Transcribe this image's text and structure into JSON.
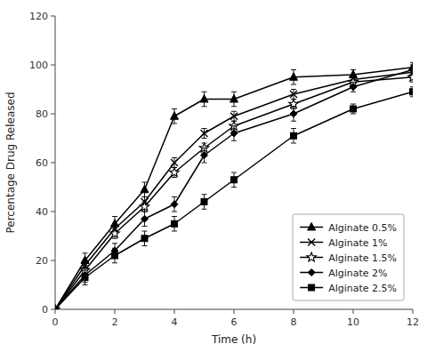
{
  "chart_data": {
    "type": "line",
    "x": [
      0,
      1,
      2,
      3,
      4,
      5,
      6,
      8,
      10,
      12
    ],
    "series": [
      {
        "name": "Alginate 0.5%",
        "color": "#000000",
        "marker": "triangle",
        "line_style": "solid",
        "values": [
          0,
          20,
          35,
          49,
          79,
          86,
          86,
          95,
          96,
          99
        ],
        "errors": [
          0,
          3,
          3,
          3,
          3,
          3,
          3,
          3,
          2,
          2
        ]
      },
      {
        "name": "Alginate 1%",
        "color": "#000000",
        "marker": "x",
        "line_style": "solid",
        "values": [
          0,
          18,
          33,
          44,
          60,
          72,
          79,
          88,
          94,
          97
        ],
        "errors": [
          0,
          2,
          2,
          2,
          2,
          2,
          2,
          2,
          2,
          2
        ]
      },
      {
        "name": "Alginate 1.5%",
        "color": "#000000",
        "marker": "star",
        "line_style": "solid",
        "values": [
          0,
          16,
          31,
          42,
          56,
          66,
          75,
          84,
          93,
          95
        ],
        "errors": [
          0,
          2,
          2,
          2,
          2,
          2,
          2,
          2,
          2,
          2
        ]
      },
      {
        "name": "Alginate 2%",
        "color": "#000000",
        "marker": "diamond",
        "line_style": "solid",
        "values": [
          0,
          14,
          24,
          37,
          43,
          63,
          72,
          80,
          91,
          98
        ],
        "errors": [
          0,
          3,
          3,
          3,
          3,
          3,
          3,
          3,
          2,
          2
        ]
      },
      {
        "name": "Alginate 2.5%",
        "color": "#000000",
        "marker": "square",
        "line_style": "solid",
        "values": [
          0,
          13,
          22,
          29,
          35,
          44,
          53,
          71,
          82,
          89
        ],
        "errors": [
          0,
          3,
          3,
          3,
          3,
          3,
          3,
          3,
          2,
          2
        ]
      }
    ],
    "x_label": "Time (h)",
    "y_label": "Percentage Drug Released",
    "xlim": [
      0,
      12
    ],
    "ylim": [
      0,
      120
    ],
    "xticks": [
      0,
      2,
      4,
      6,
      8,
      10,
      12
    ],
    "yticks": [
      0,
      20,
      40,
      60,
      80,
      100,
      120
    ],
    "legend": "lower right",
    "grid": false
  }
}
